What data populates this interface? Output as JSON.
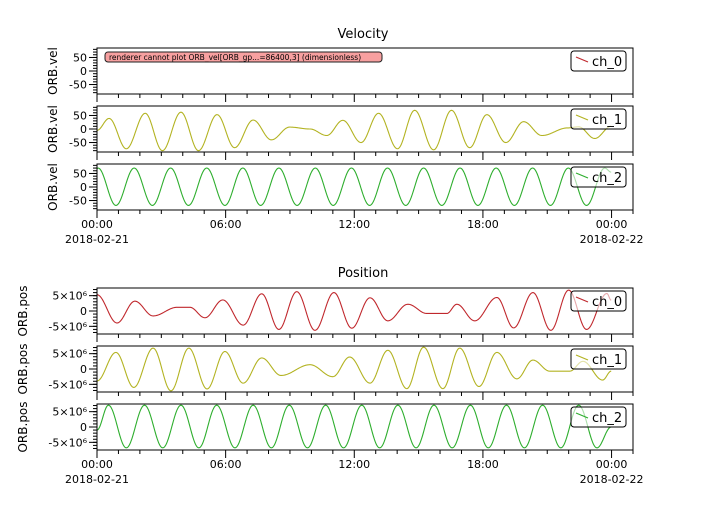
{
  "chart_data": [
    {
      "type": "line",
      "title": "Velocity",
      "date": "2018-02-21",
      "xlim": [
        "2018-02-21 00:00",
        "2018-02-22 01:00"
      ],
      "x_ticks": [
        {
          "time": "00:00",
          "date": "2018-02-21"
        },
        {
          "time": "06:00",
          "date": ""
        },
        {
          "time": "12:00",
          "date": ""
        },
        {
          "time": "18:00",
          "date": ""
        },
        {
          "time": "00:00",
          "date": "2018-02-22"
        }
      ],
      "panels": [
        {
          "ylabel": "ORB.vel",
          "ylim": [
            -85,
            85
          ],
          "ytick_minor": 10,
          "yticks": [
            {
              "value": 50,
              "label": "50"
            },
            {
              "value": 0,
              "label": "0"
            },
            {
              "value": -50,
              "label": "-50"
            }
          ],
          "message": "renderer cannot plot ORB_vel[ORB_gp...=86400,3] (dimensionless)",
          "series": [
            {
              "name": "ch_0",
              "color": "#c0282d",
              "points": []
            }
          ]
        },
        {
          "ylabel": "ORB.vel",
          "ylim": [
            -85,
            85
          ],
          "ytick_minor": 10,
          "yticks": [
            {
              "value": 50,
              "label": "50"
            },
            {
              "value": 0,
              "label": "0"
            },
            {
              "value": -50,
              "label": "-50"
            }
          ],
          "series": [
            {
              "name": "ch_1",
              "color": "#b3b322",
              "points": [
                [
                  "00:00",
                  -5
                ],
                [
                  "00:34",
                  39
                ],
                [
                  "01:22",
                  -73
                ],
                [
                  "02:15",
                  58
                ],
                [
                  "03:03",
                  -80
                ],
                [
                  "03:55",
                  62
                ],
                [
                  "04:44",
                  -80
                ],
                [
                  "05:36",
                  53
                ],
                [
                  "06:25",
                  -69
                ],
                [
                  "07:17",
                  33
                ],
                [
                  "08:08",
                  -40
                ],
                [
                  "08:59",
                  7
                ],
                [
                  "09:56",
                  0
                ],
                [
                  "10:43",
                  -24
                ],
                [
                  "11:28",
                  32
                ],
                [
                  "12:19",
                  -50
                ],
                [
                  "13:08",
                  58
                ],
                [
                  "14:01",
                  -73
                ],
                [
                  "14:49",
                  69
                ],
                [
                  "15:42",
                  -77
                ],
                [
                  "16:32",
                  69
                ],
                [
                  "17:23",
                  -69
                ],
                [
                  "18:11",
                  53
                ],
                [
                  "19:04",
                  -50
                ],
                [
                  "19:54",
                  27
                ],
                [
                  "20:45",
                  -24
                ],
                [
                  "21:57",
                  4
                ],
                [
                  "22:28",
                  8
                ],
                [
                  "23:13",
                  -35
                ],
                [
                  "23:59",
                  10
                ]
              ]
            }
          ]
        },
        {
          "ylabel": "ORB.vel",
          "ylim": [
            -85,
            85
          ],
          "ytick_minor": 10,
          "yticks": [
            {
              "value": 50,
              "label": "50"
            },
            {
              "value": 0,
              "label": "0"
            },
            {
              "value": -50,
              "label": "-50"
            }
          ],
          "series": [
            {
              "name": "ch_2",
              "color": "#2eae2e",
              "points": [
                [
                  "00:00",
                  68
                ],
                [
                  "00:03",
                  70
                ],
                [
                  "00:53",
                  -68
                ],
                [
                  "01:44",
                  70
                ],
                [
                  "02:35",
                  -68
                ],
                [
                  "03:26",
                  70
                ],
                [
                  "04:16",
                  -68
                ],
                [
                  "05:07",
                  70
                ],
                [
                  "05:58",
                  -68
                ],
                [
                  "06:48",
                  70
                ],
                [
                  "07:38",
                  -68
                ],
                [
                  "08:29",
                  70
                ],
                [
                  "09:20",
                  -68
                ],
                [
                  "10:11",
                  70
                ],
                [
                  "11:01",
                  -68
                ],
                [
                  "11:52",
                  70
                ],
                [
                  "12:43",
                  -68
                ],
                [
                  "13:33",
                  70
                ],
                [
                  "14:24",
                  -68
                ],
                [
                  "15:14",
                  70
                ],
                [
                  "16:05",
                  -68
                ],
                [
                  "16:56",
                  70
                ],
                [
                  "17:46",
                  -68
                ],
                [
                  "18:37",
                  70
                ],
                [
                  "19:28",
                  -68
                ],
                [
                  "20:19",
                  70
                ],
                [
                  "21:09",
                  -68
                ],
                [
                  "21:59",
                  70
                ],
                [
                  "22:50",
                  -68
                ],
                [
                  "23:41",
                  70
                ],
                [
                  "23:59",
                  55
                ]
              ]
            }
          ]
        }
      ]
    },
    {
      "type": "line",
      "title": "Position",
      "date": "2018-02-21",
      "xlim": [
        "2018-02-21 00:00",
        "2018-02-22 01:00"
      ],
      "x_ticks": [
        {
          "time": "00:00",
          "date": "2018-02-21"
        },
        {
          "time": "06:00",
          "date": ""
        },
        {
          "time": "12:00",
          "date": ""
        },
        {
          "time": "18:00",
          "date": ""
        },
        {
          "time": "00:00",
          "date": "2018-02-22"
        }
      ],
      "panels": [
        {
          "ylabel": "ORB.pos",
          "ylim": [
            -7500000,
            7500000
          ],
          "ytick_minor": 1000000,
          "yticks": [
            {
              "value": 5000000,
              "label": "5×10⁶"
            },
            {
              "value": 0,
              "label": "0"
            },
            {
              "value": -5000000,
              "label": "-5×10⁶"
            }
          ],
          "series": [
            {
              "name": "ch_0",
              "color": "#c0282d",
              "points": [
                [
                  "00:00",
                  5300000
                ],
                [
                  "00:56",
                  -3900000
                ],
                [
                  "01:46",
                  3200000
                ],
                [
                  "02:37",
                  -1600000
                ],
                [
                  "03:44",
                  1200000
                ],
                [
                  "04:20",
                  1200000
                ],
                [
                  "05:02",
                  -2200000
                ],
                [
                  "05:52",
                  3600000
                ],
                [
                  "06:49",
                  -4600000
                ],
                [
                  "07:41",
                  5600000
                ],
                [
                  "08:29",
                  -6000000
                ],
                [
                  "09:19",
                  6300000
                ],
                [
                  "10:10",
                  -6300000
                ],
                [
                  "11:03",
                  6000000
                ],
                [
                  "11:53",
                  -5600000
                ],
                [
                  "12:44",
                  4300000
                ],
                [
                  "13:34",
                  -3200000
                ],
                [
                  "14:30",
                  2200000
                ],
                [
                  "15:23",
                  -800000
                ],
                [
                  "16:19",
                  -800000
                ],
                [
                  "16:47",
                  2200000
                ],
                [
                  "17:37",
                  -3200000
                ],
                [
                  "18:39",
                  4400000
                ],
                [
                  "19:26",
                  -5500000
                ],
                [
                  "20:20",
                  6000000
                ],
                [
                  "21:10",
                  -6300000
                ],
                [
                  "22:00",
                  6800000
                ],
                [
                  "22:50",
                  -6000000
                ],
                [
                  "23:47",
                  5700000
                ],
                [
                  "23:59",
                  3500000
                ]
              ]
            }
          ]
        },
        {
          "ylabel": "ORB.pos",
          "ylim": [
            -7500000,
            7500000
          ],
          "ytick_minor": 1000000,
          "yticks": [
            {
              "value": 5000000,
              "label": "5×10⁶"
            },
            {
              "value": 0,
              "label": "0"
            },
            {
              "value": -5000000,
              "label": "-5×10⁶"
            }
          ],
          "series": [
            {
              "name": "ch_1",
              "color": "#b3b322",
              "points": [
                [
                  "00:00",
                  -3900000
                ],
                [
                  "00:53",
                  5400000
                ],
                [
                  "01:43",
                  -6000000
                ],
                [
                  "02:37",
                  6800000
                ],
                [
                  "03:27",
                  -7100000
                ],
                [
                  "04:17",
                  6800000
                ],
                [
                  "05:08",
                  -6500000
                ],
                [
                  "05:58",
                  5700000
                ],
                [
                  "06:49",
                  -4600000
                ],
                [
                  "07:41",
                  3600000
                ],
                [
                  "08:35",
                  -2100000
                ],
                [
                  "09:56",
                  1400000
                ],
                [
                  "11:00",
                  -2500000
                ],
                [
                  "11:47",
                  3900000
                ],
                [
                  "12:44",
                  -4600000
                ],
                [
                  "13:34",
                  6100000
                ],
                [
                  "14:27",
                  -6400000
                ],
                [
                  "15:14",
                  7100000
                ],
                [
                  "16:08",
                  -6400000
                ],
                [
                  "16:55",
                  6800000
                ],
                [
                  "17:49",
                  -5700000
                ],
                [
                  "18:39",
                  5400000
                ],
                [
                  "19:35",
                  -3200000
                ],
                [
                  "20:20",
                  2900000
                ],
                [
                  "21:07",
                  -700000
                ],
                [
                  "22:03",
                  -700000
                ],
                [
                  "22:40",
                  2500000
                ],
                [
                  "23:35",
                  -3600000
                ],
                [
                  "23:59",
                  -700000
                ]
              ]
            }
          ]
        },
        {
          "ylabel": "ORB.pos",
          "ylim": [
            -7500000,
            7500000
          ],
          "ytick_minor": 1000000,
          "yticks": [
            {
              "value": 5000000,
              "label": "5×10⁶"
            },
            {
              "value": 0,
              "label": "0"
            },
            {
              "value": -5000000,
              "label": "-5×10⁶"
            }
          ],
          "series": [
            {
              "name": "ch_2",
              "color": "#2eae2e",
              "points": [
                [
                  "00:00",
                  -1000000
                ],
                [
                  "00:32",
                  7100000
                ],
                [
                  "01:22",
                  -6800000
                ],
                [
                  "02:13",
                  7100000
                ],
                [
                  "03:04",
                  -6800000
                ],
                [
                  "03:55",
                  7100000
                ],
                [
                  "04:45",
                  -6800000
                ],
                [
                  "05:35",
                  7100000
                ],
                [
                  "06:26",
                  -6800000
                ],
                [
                  "07:17",
                  7100000
                ],
                [
                  "08:08",
                  -6800000
                ],
                [
                  "08:58",
                  7100000
                ],
                [
                  "09:49",
                  -6800000
                ],
                [
                  "10:40",
                  7100000
                ],
                [
                  "11:30",
                  -6800000
                ],
                [
                  "12:21",
                  7100000
                ],
                [
                  "13:11",
                  -6800000
                ],
                [
                  "14:02",
                  7100000
                ],
                [
                  "14:53",
                  -6800000
                ],
                [
                  "15:43",
                  7100000
                ],
                [
                  "16:34",
                  -6800000
                ],
                [
                  "17:25",
                  7100000
                ],
                [
                  "18:15",
                  -6800000
                ],
                [
                  "19:06",
                  7100000
                ],
                [
                  "19:56",
                  -6800000
                ],
                [
                  "20:47",
                  7100000
                ],
                [
                  "21:38",
                  -6800000
                ],
                [
                  "22:28",
                  7100000
                ],
                [
                  "23:19",
                  -6800000
                ],
                [
                  "23:59",
                  0
                ]
              ]
            }
          ]
        }
      ]
    }
  ]
}
